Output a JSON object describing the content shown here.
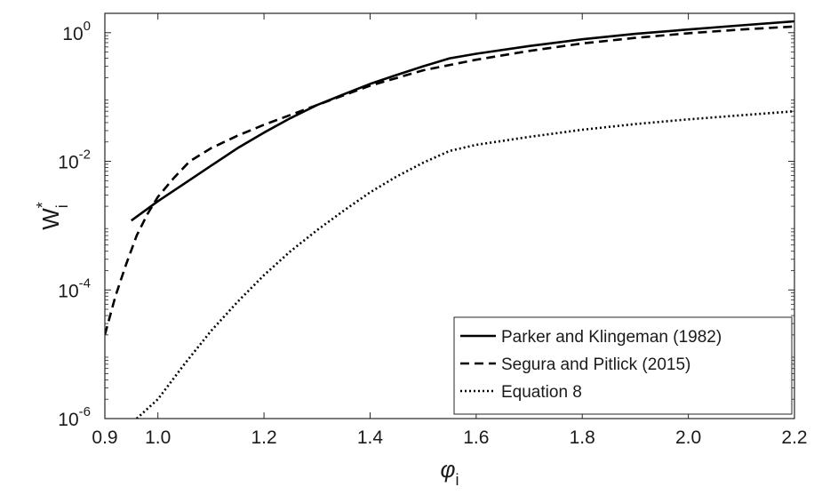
{
  "chart_data": {
    "type": "line",
    "title": "",
    "xlabel": {
      "base": "φ",
      "subscript": "i"
    },
    "ylabel": {
      "base": "W",
      "superscript": "*",
      "subscript": "i"
    },
    "xlim": [
      0.9,
      2.2
    ],
    "ylim": [
      1e-06,
      2
    ],
    "yscale": "log",
    "grid": false,
    "x_ticks": [
      {
        "value": 0.9,
        "label": "0.9"
      },
      {
        "value": 1.0,
        "label": "1.0"
      },
      {
        "value": 1.2,
        "label": "1.2"
      },
      {
        "value": 1.4,
        "label": "1.4"
      },
      {
        "value": 1.6,
        "label": "1.6"
      },
      {
        "value": 1.8,
        "label": "1.8"
      },
      {
        "value": 2.0,
        "label": "2.0"
      },
      {
        "value": 2.2,
        "label": "2.2"
      }
    ],
    "y_ticks": [
      {
        "value": 1e-06,
        "base": "10",
        "exp": "-6"
      },
      {
        "value": 0.0001,
        "base": "10",
        "exp": "-4"
      },
      {
        "value": 0.01,
        "base": "10",
        "exp": "-2"
      },
      {
        "value": 1,
        "base": "10",
        "exp": "0"
      }
    ],
    "legend": {
      "placement": "bottom-right"
    },
    "series": [
      {
        "name": "Parker and Klingeman (1982)",
        "style": "solid",
        "color": "#000000",
        "x": [
          0.95,
          1.0,
          1.05,
          1.1,
          1.15,
          1.2,
          1.25,
          1.3,
          1.35,
          1.4,
          1.45,
          1.5,
          1.55,
          1.6,
          1.7,
          1.8,
          1.9,
          2.0,
          2.1,
          2.2
        ],
        "y": [
          0.0012,
          0.0024,
          0.0045,
          0.0085,
          0.016,
          0.028,
          0.047,
          0.075,
          0.11,
          0.16,
          0.22,
          0.3,
          0.4,
          0.47,
          0.62,
          0.79,
          0.96,
          1.12,
          1.3,
          1.5
        ]
      },
      {
        "name": "Segura and Pitlick (2015)",
        "style": "dashed",
        "color": "#000000",
        "x": [
          0.9,
          0.92,
          0.94,
          0.96,
          0.98,
          1.0,
          1.03,
          1.06,
          1.1,
          1.15,
          1.2,
          1.3,
          1.4,
          1.5,
          1.6,
          1.7,
          1.8,
          1.9,
          2.0,
          2.1,
          2.2
        ],
        "y": [
          2e-05,
          8e-05,
          0.00025,
          0.0007,
          0.0015,
          0.0028,
          0.0055,
          0.01,
          0.016,
          0.025,
          0.037,
          0.075,
          0.15,
          0.26,
          0.38,
          0.52,
          0.68,
          0.83,
          0.98,
          1.12,
          1.25
        ]
      },
      {
        "name": "Equation 8",
        "style": "dotted",
        "color": "#000000",
        "x": [
          0.96,
          1.0,
          1.05,
          1.1,
          1.15,
          1.2,
          1.25,
          1.3,
          1.35,
          1.4,
          1.45,
          1.5,
          1.55,
          1.6,
          1.7,
          1.8,
          1.9,
          2.0,
          2.1,
          2.2
        ],
        "y": [
          1e-06,
          2e-06,
          7e-06,
          2.3e-05,
          6.5e-05,
          0.00017,
          0.0004,
          0.00085,
          0.0017,
          0.0033,
          0.0058,
          0.0095,
          0.0145,
          0.018,
          0.024,
          0.031,
          0.038,
          0.045,
          0.052,
          0.06
        ]
      }
    ]
  }
}
